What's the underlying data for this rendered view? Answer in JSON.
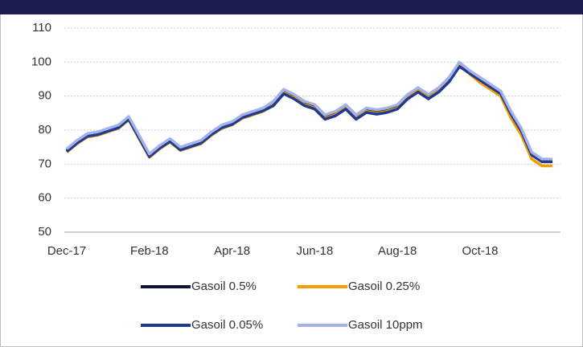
{
  "chart_data": {
    "type": "line",
    "categories": [
      "Dec-17",
      null,
      null,
      null,
      null,
      null,
      null,
      null,
      "Feb-18",
      null,
      null,
      null,
      null,
      null,
      null,
      null,
      "Apr-18",
      null,
      null,
      null,
      null,
      null,
      null,
      null,
      "Jun-18",
      null,
      null,
      null,
      null,
      null,
      null,
      null,
      "Aug-18",
      null,
      null,
      null,
      null,
      null,
      null,
      null,
      "Oct-18",
      null,
      null,
      null,
      null,
      null,
      null,
      null
    ],
    "series": [
      {
        "name": "Gasoil 0.5%",
        "color": "#0d1433",
        "values": [
          74,
          76.5,
          78.5,
          79,
          80,
          81,
          83.5,
          78,
          72.5,
          75,
          77,
          74.5,
          75.5,
          76.5,
          79,
          81,
          82,
          84,
          85,
          86,
          88,
          91.5,
          90,
          88,
          87,
          84,
          85,
          87,
          84,
          86,
          85.5,
          86,
          87,
          90,
          92,
          90,
          92,
          95,
          99.5,
          97,
          95,
          93,
          91,
          85,
          80,
          73,
          71,
          71
        ]
      },
      {
        "name": "Gasoil 0.25%",
        "color": "#f59c00",
        "values": [
          73.5,
          76,
          78,
          78.5,
          79.5,
          80.5,
          83,
          77.5,
          72,
          74.5,
          76.5,
          74,
          75,
          76,
          78.5,
          80.5,
          81.5,
          83.5,
          84.5,
          85.5,
          87.5,
          91,
          89.5,
          87.5,
          86.5,
          83.5,
          84.5,
          86.5,
          83.5,
          85.5,
          85,
          85.5,
          86.5,
          89.5,
          91.5,
          89.5,
          91.5,
          94.5,
          99,
          96.5,
          94,
          92,
          90,
          83.5,
          78.5,
          71.5,
          69.5,
          69.5
        ]
      },
      {
        "name": "Gasoil 0.05%",
        "color": "#1f3a93",
        "values": [
          73.7,
          76.2,
          78.2,
          78.7,
          79.7,
          80.7,
          83.2,
          77.7,
          72.2,
          74.7,
          76.7,
          74.2,
          75.2,
          76.2,
          78.7,
          80.7,
          81.7,
          83.7,
          84.7,
          85.7,
          87.2,
          90.7,
          89.2,
          87.2,
          86.2,
          83.2,
          84.2,
          86.2,
          83.2,
          85.2,
          84.7,
          85.2,
          86.2,
          89.2,
          91.2,
          89.2,
          91.2,
          94.2,
          98.7,
          96.7,
          94.7,
          92.7,
          90.7,
          84.7,
          79.7,
          72.7,
          70.7,
          70.7
        ]
      },
      {
        "name": "Gasoil 10ppm",
        "color": "#a4b4e8",
        "values": [
          74.5,
          77,
          79,
          79.5,
          80.5,
          81.5,
          84,
          78.5,
          73,
          75.5,
          77.5,
          75,
          76,
          77,
          79.5,
          81.5,
          82.5,
          84.5,
          85.5,
          86.5,
          88.5,
          92,
          90.5,
          88.5,
          87.5,
          84.5,
          85.5,
          87.5,
          84.5,
          86.5,
          86,
          86.5,
          87.5,
          90.5,
          92.5,
          90.5,
          92.5,
          95.5,
          100,
          97.5,
          95.5,
          93.5,
          91.5,
          85.5,
          80.5,
          73.5,
          71.5,
          71.5
        ]
      }
    ],
    "ylim": [
      50,
      110
    ],
    "yticks": [
      50,
      60,
      70,
      80,
      90,
      100,
      110
    ],
    "grid": true,
    "legend": "bottom"
  }
}
